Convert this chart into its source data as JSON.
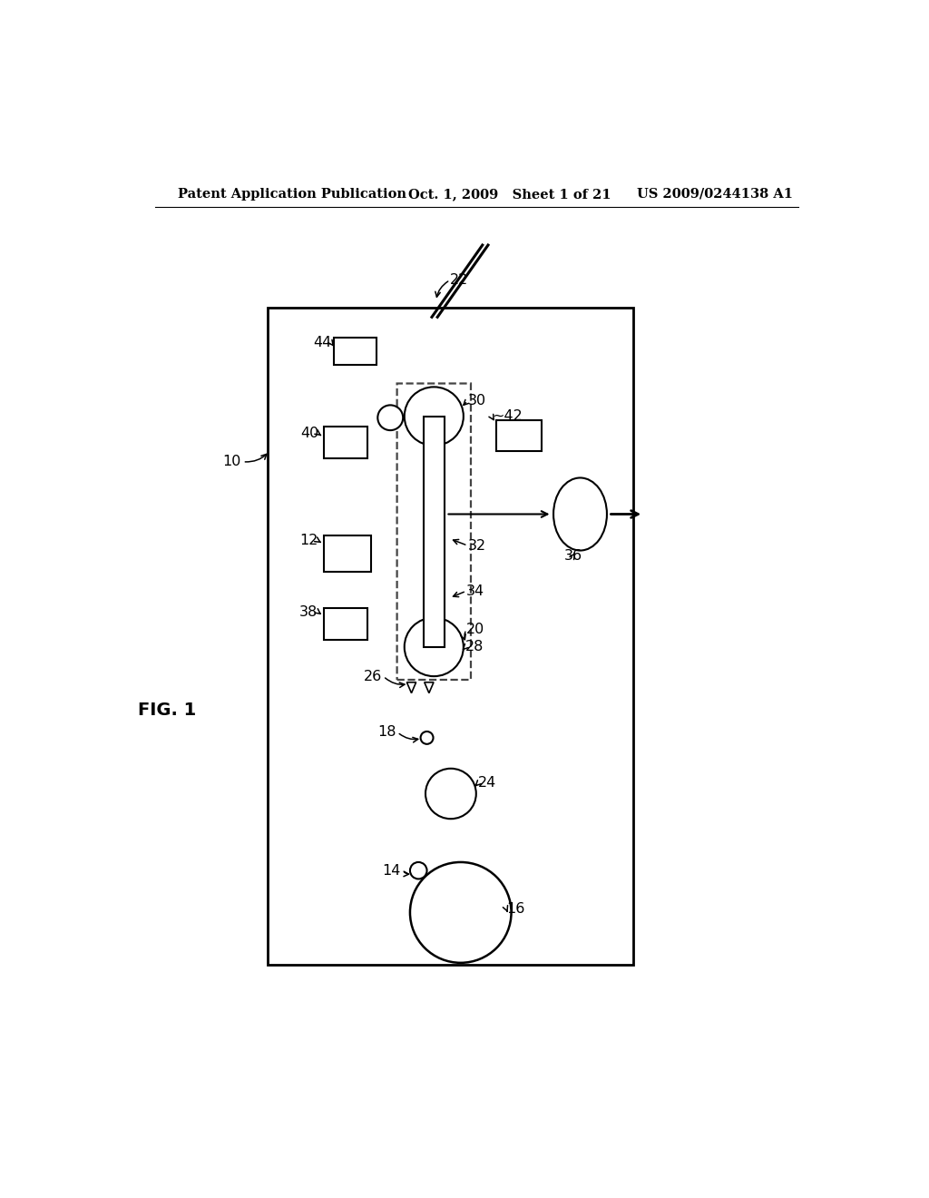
{
  "bg_color": "#ffffff",
  "header_left": "Patent Application Publication",
  "header_middle": "Oct. 1, 2009   Sheet 1 of 21",
  "header_right": "US 2009/0244138 A1",
  "fig_label": "FIG. 1"
}
